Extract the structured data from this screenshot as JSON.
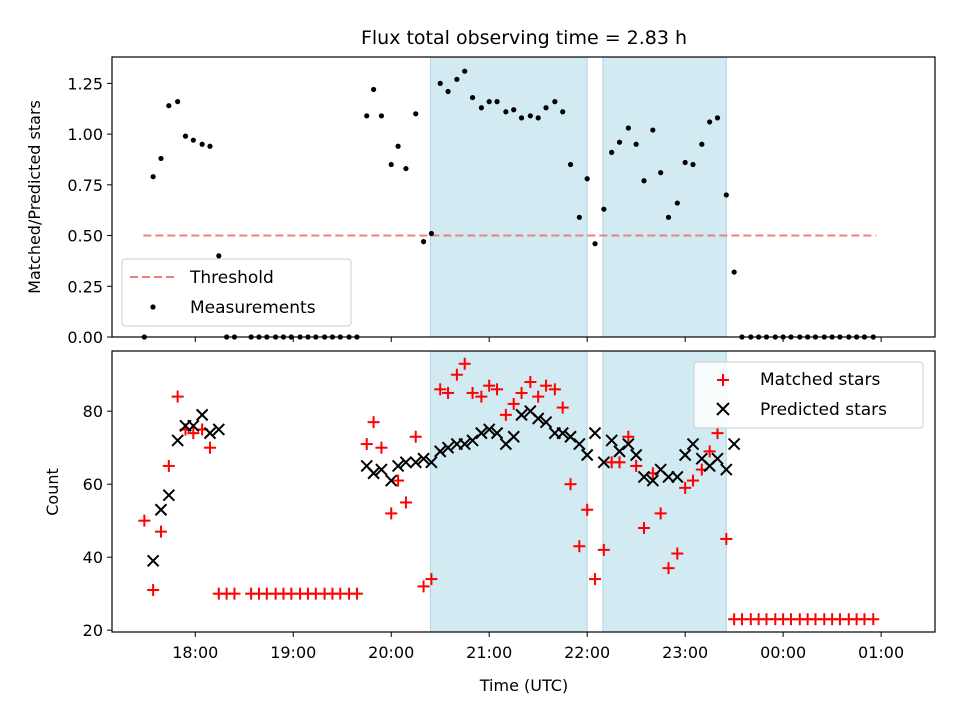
{
  "title": "Flux total observing time = 2.83 h",
  "chart_data": [
    {
      "type": "scatter",
      "ylabel": "Matched/Predicted stars",
      "xlim_hours": [
        17.15,
        25.55
      ],
      "ylim": [
        0,
        1.38
      ],
      "yticks": [
        0,
        0.25,
        0.5,
        0.75,
        1.0,
        1.25
      ],
      "ytick_labels": [
        "0.00",
        "0.25",
        "0.50",
        "0.75",
        "1.00",
        "1.25"
      ],
      "legend": {
        "placement": "lower-left",
        "entries": [
          {
            "label": "Threshold",
            "marker": "dashed-line",
            "color": "#f08080"
          },
          {
            "label": "Measurements",
            "marker": "dot",
            "color": "#000000"
          }
        ]
      },
      "shaded_intervals_hours": [
        [
          20.4,
          22.0
        ],
        [
          22.16,
          23.42
        ]
      ],
      "shade_color": "#add8e6",
      "threshold": {
        "name": "Threshold",
        "value": 0.5,
        "x_range_hours": [
          17.47,
          24.95
        ],
        "color": "#f08080"
      },
      "series": [
        {
          "name": "Measurements",
          "color": "#000000",
          "points": [
            [
              17.48,
              0.0
            ],
            [
              17.57,
              0.79
            ],
            [
              17.65,
              0.88
            ],
            [
              17.73,
              1.14
            ],
            [
              17.82,
              1.16
            ],
            [
              17.9,
              0.99
            ],
            [
              17.98,
              0.97
            ],
            [
              18.07,
              0.95
            ],
            [
              18.15,
              0.94
            ],
            [
              18.24,
              0.4
            ],
            [
              18.32,
              0.0
            ],
            [
              18.4,
              0.0
            ],
            [
              18.57,
              0.0
            ],
            [
              18.65,
              0.0
            ],
            [
              18.73,
              0.0
            ],
            [
              18.82,
              0.0
            ],
            [
              18.9,
              0.0
            ],
            [
              18.98,
              0.0
            ],
            [
              19.07,
              0.0
            ],
            [
              19.15,
              0.0
            ],
            [
              19.23,
              0.0
            ],
            [
              19.32,
              0.0
            ],
            [
              19.4,
              0.0
            ],
            [
              19.48,
              0.0
            ],
            [
              19.57,
              0.0
            ],
            [
              19.65,
              0.0
            ],
            [
              19.75,
              1.09
            ],
            [
              19.82,
              1.22
            ],
            [
              19.9,
              1.09
            ],
            [
              20.0,
              0.85
            ],
            [
              20.07,
              0.94
            ],
            [
              20.15,
              0.83
            ],
            [
              20.25,
              1.1
            ],
            [
              20.33,
              0.47
            ],
            [
              20.41,
              0.51
            ],
            [
              20.5,
              1.25
            ],
            [
              20.58,
              1.21
            ],
            [
              20.67,
              1.27
            ],
            [
              20.75,
              1.31
            ],
            [
              20.83,
              1.18
            ],
            [
              20.92,
              1.13
            ],
            [
              21.0,
              1.16
            ],
            [
              21.08,
              1.16
            ],
            [
              21.17,
              1.11
            ],
            [
              21.25,
              1.12
            ],
            [
              21.33,
              1.08
            ],
            [
              21.42,
              1.09
            ],
            [
              21.5,
              1.08
            ],
            [
              21.58,
              1.13
            ],
            [
              21.67,
              1.16
            ],
            [
              21.75,
              1.11
            ],
            [
              21.83,
              0.85
            ],
            [
              21.92,
              0.59
            ],
            [
              22.0,
              0.78
            ],
            [
              22.08,
              0.46
            ],
            [
              22.17,
              0.63
            ],
            [
              22.25,
              0.91
            ],
            [
              22.33,
              0.96
            ],
            [
              22.42,
              1.03
            ],
            [
              22.5,
              0.95
            ],
            [
              22.58,
              0.77
            ],
            [
              22.67,
              1.02
            ],
            [
              22.75,
              0.81
            ],
            [
              22.83,
              0.59
            ],
            [
              22.92,
              0.66
            ],
            [
              23.0,
              0.86
            ],
            [
              23.08,
              0.85
            ],
            [
              23.17,
              0.95
            ],
            [
              23.25,
              1.06
            ],
            [
              23.33,
              1.08
            ],
            [
              23.42,
              0.7
            ],
            [
              23.5,
              0.32
            ],
            [
              23.58,
              0.0
            ],
            [
              23.67,
              0.0
            ],
            [
              23.75,
              0.0
            ],
            [
              23.83,
              0.0
            ],
            [
              23.92,
              0.0
            ],
            [
              24.0,
              0.0
            ],
            [
              24.08,
              0.0
            ],
            [
              24.17,
              0.0
            ],
            [
              24.25,
              0.0
            ],
            [
              24.33,
              0.0
            ],
            [
              24.42,
              0.0
            ],
            [
              24.5,
              0.0
            ],
            [
              24.58,
              0.0
            ],
            [
              24.67,
              0.0
            ],
            [
              24.75,
              0.0
            ],
            [
              24.83,
              0.0
            ],
            [
              24.92,
              0.0
            ]
          ]
        }
      ]
    },
    {
      "type": "scatter",
      "xlabel": "Time (UTC)",
      "ylabel": "Count",
      "xlim_hours": [
        17.15,
        25.55
      ],
      "ylim": [
        19.5,
        96.5
      ],
      "yticks": [
        20,
        40,
        60,
        80
      ],
      "ytick_labels": [
        "20",
        "40",
        "60",
        "80"
      ],
      "xticks_hours": [
        18,
        19,
        20,
        21,
        22,
        23,
        24,
        25
      ],
      "xtick_labels": [
        "18:00",
        "19:00",
        "20:00",
        "21:00",
        "22:00",
        "23:00",
        "00:00",
        "01:00"
      ],
      "legend": {
        "placement": "upper-right",
        "entries": [
          {
            "label": "Matched stars",
            "marker": "plus",
            "color": "#ff0000"
          },
          {
            "label": "Predicted stars",
            "marker": "x",
            "color": "#000000"
          }
        ]
      },
      "shaded_intervals_hours": [
        [
          20.4,
          22.0
        ],
        [
          22.16,
          23.42
        ]
      ],
      "shade_color": "#add8e6",
      "series": [
        {
          "name": "Matched stars",
          "marker": "plus",
          "color": "#ff0000",
          "points": [
            [
              17.48,
              50
            ],
            [
              17.57,
              31
            ],
            [
              17.65,
              47
            ],
            [
              17.73,
              65
            ],
            [
              17.82,
              84
            ],
            [
              17.9,
              75
            ],
            [
              17.98,
              74
            ],
            [
              18.07,
              75
            ],
            [
              18.15,
              70
            ],
            [
              18.24,
              30
            ],
            [
              18.32,
              30
            ],
            [
              18.4,
              30
            ],
            [
              18.57,
              30
            ],
            [
              18.65,
              30
            ],
            [
              18.73,
              30
            ],
            [
              18.82,
              30
            ],
            [
              18.9,
              30
            ],
            [
              18.98,
              30
            ],
            [
              19.07,
              30
            ],
            [
              19.15,
              30
            ],
            [
              19.23,
              30
            ],
            [
              19.32,
              30
            ],
            [
              19.4,
              30
            ],
            [
              19.48,
              30
            ],
            [
              19.57,
              30
            ],
            [
              19.65,
              30
            ],
            [
              19.75,
              71
            ],
            [
              19.82,
              77
            ],
            [
              19.9,
              70
            ],
            [
              20.0,
              52
            ],
            [
              20.07,
              61
            ],
            [
              20.15,
              55
            ],
            [
              20.25,
              73
            ],
            [
              20.33,
              32
            ],
            [
              20.41,
              34
            ],
            [
              20.5,
              86
            ],
            [
              20.58,
              85
            ],
            [
              20.67,
              90
            ],
            [
              20.75,
              93
            ],
            [
              20.83,
              85
            ],
            [
              20.92,
              84
            ],
            [
              21.0,
              87
            ],
            [
              21.08,
              86
            ],
            [
              21.17,
              79
            ],
            [
              21.25,
              82
            ],
            [
              21.33,
              85
            ],
            [
              21.42,
              88
            ],
            [
              21.5,
              84
            ],
            [
              21.58,
              87
            ],
            [
              21.67,
              86
            ],
            [
              21.75,
              81
            ],
            [
              21.83,
              60
            ],
            [
              21.92,
              43
            ],
            [
              22.0,
              53
            ],
            [
              22.08,
              34
            ],
            [
              22.17,
              42
            ],
            [
              22.25,
              66
            ],
            [
              22.33,
              66
            ],
            [
              22.42,
              73
            ],
            [
              22.5,
              65
            ],
            [
              22.58,
              48
            ],
            [
              22.67,
              63
            ],
            [
              22.75,
              52
            ],
            [
              22.83,
              37
            ],
            [
              22.92,
              41
            ],
            [
              23.0,
              59
            ],
            [
              23.08,
              61
            ],
            [
              23.17,
              64
            ],
            [
              23.25,
              69
            ],
            [
              23.33,
              74
            ],
            [
              23.42,
              45
            ],
            [
              23.5,
              23
            ],
            [
              23.58,
              23
            ],
            [
              23.67,
              23
            ],
            [
              23.75,
              23
            ],
            [
              23.83,
              23
            ],
            [
              23.92,
              23
            ],
            [
              24.0,
              23
            ],
            [
              24.08,
              23
            ],
            [
              24.17,
              23
            ],
            [
              24.25,
              23
            ],
            [
              24.33,
              23
            ],
            [
              24.42,
              23
            ],
            [
              24.5,
              23
            ],
            [
              24.58,
              23
            ],
            [
              24.67,
              23
            ],
            [
              24.75,
              23
            ],
            [
              24.83,
              23
            ],
            [
              24.92,
              23
            ]
          ]
        },
        {
          "name": "Predicted stars",
          "marker": "x",
          "color": "#000000",
          "points": [
            [
              17.57,
              39
            ],
            [
              17.65,
              53
            ],
            [
              17.73,
              57
            ],
            [
              17.82,
              72
            ],
            [
              17.9,
              76
            ],
            [
              17.98,
              76
            ],
            [
              18.07,
              79
            ],
            [
              18.15,
              74
            ],
            [
              18.24,
              75
            ],
            [
              19.75,
              65
            ],
            [
              19.82,
              63
            ],
            [
              19.9,
              64
            ],
            [
              20.0,
              61
            ],
            [
              20.07,
              65
            ],
            [
              20.15,
              66
            ],
            [
              20.25,
              66
            ],
            [
              20.33,
              67
            ],
            [
              20.41,
              66
            ],
            [
              20.5,
              69
            ],
            [
              20.58,
              70
            ],
            [
              20.67,
              71
            ],
            [
              20.75,
              71
            ],
            [
              20.83,
              72
            ],
            [
              20.92,
              74
            ],
            [
              21.0,
              75
            ],
            [
              21.08,
              74
            ],
            [
              21.17,
              71
            ],
            [
              21.25,
              73
            ],
            [
              21.33,
              79
            ],
            [
              21.42,
              80
            ],
            [
              21.5,
              78
            ],
            [
              21.58,
              77
            ],
            [
              21.67,
              74
            ],
            [
              21.75,
              74
            ],
            [
              21.83,
              73
            ],
            [
              21.92,
              71
            ],
            [
              22.0,
              68
            ],
            [
              22.08,
              74
            ],
            [
              22.17,
              66
            ],
            [
              22.25,
              72
            ],
            [
              22.33,
              69
            ],
            [
              22.42,
              71
            ],
            [
              22.5,
              68
            ],
            [
              22.58,
              62
            ],
            [
              22.67,
              61
            ],
            [
              22.75,
              64
            ],
            [
              22.83,
              62
            ],
            [
              22.92,
              62
            ],
            [
              23.0,
              68
            ],
            [
              23.08,
              71
            ],
            [
              23.17,
              67
            ],
            [
              23.25,
              65
            ],
            [
              23.33,
              67
            ],
            [
              23.42,
              64
            ],
            [
              23.5,
              71
            ]
          ]
        }
      ]
    }
  ]
}
